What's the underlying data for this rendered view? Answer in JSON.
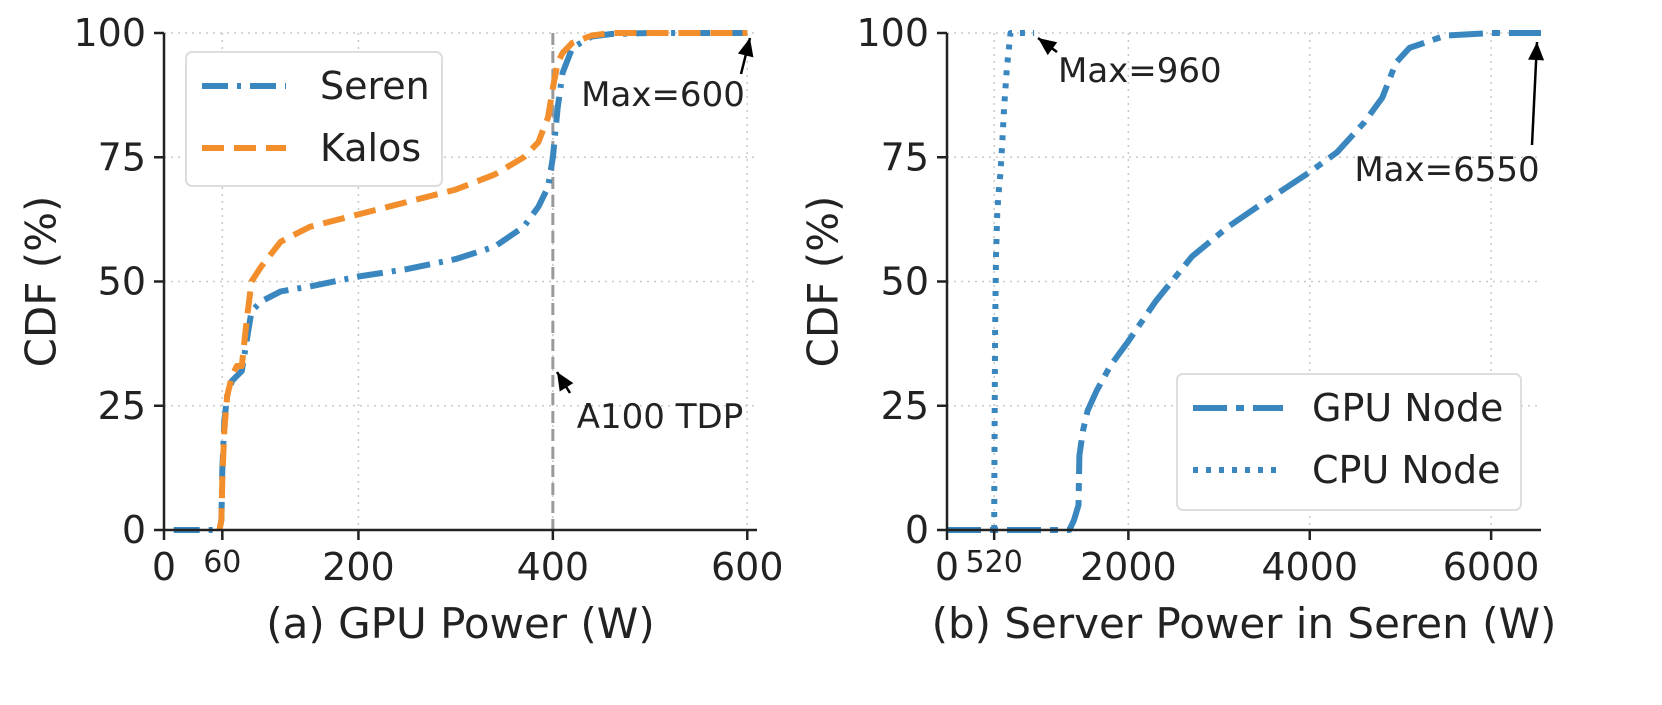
{
  "chart_data": [
    {
      "type": "line",
      "subplot": "(a)",
      "xlabel": "(a) GPU Power (W)",
      "ylabel": "CDF (%)",
      "xlim": [
        0,
        610
      ],
      "ylim": [
        0,
        100
      ],
      "xticks": [
        0,
        60,
        200,
        400,
        600
      ],
      "xtick_labels": [
        "0",
        "60",
        "200",
        "400",
        "600"
      ],
      "yticks": [
        0,
        25,
        50,
        75,
        100
      ],
      "ytick_labels": [
        "0",
        "25",
        "50",
        "75",
        "100"
      ],
      "grid": true,
      "legend_position": "upper-left",
      "vertical_line": {
        "x": 400,
        "label": "A100 TDP",
        "color": "#999999"
      },
      "series": [
        {
          "name": "Seren",
          "color": "#3a87c0",
          "style": "dash-dot",
          "x": [
            10,
            57,
            59,
            60,
            62,
            65,
            70,
            75,
            80,
            85,
            90,
            100,
            120,
            150,
            200,
            250,
            300,
            340,
            370,
            385,
            395,
            400,
            405,
            410,
            420,
            440,
            460,
            500,
            550,
            600
          ],
          "y": [
            0,
            0,
            2,
            12,
            22,
            27,
            30,
            31,
            32,
            38,
            44,
            46,
            48,
            49,
            51,
            52.5,
            54.5,
            57,
            61,
            65,
            69,
            75,
            85,
            92,
            97,
            99.3,
            99.8,
            100,
            100,
            100
          ]
        },
        {
          "name": "Kalos",
          "color": "#f28e2b",
          "style": "dash",
          "x": [
            57,
            59,
            60,
            62,
            65,
            70,
            75,
            80,
            85,
            90,
            100,
            120,
            150,
            200,
            250,
            300,
            340,
            370,
            385,
            395,
            400,
            405,
            410,
            420,
            440,
            460,
            500,
            550,
            600
          ],
          "y": [
            0,
            2,
            10,
            20,
            27,
            31,
            33,
            33,
            42,
            50,
            53,
            58,
            61,
            63.5,
            66,
            68.5,
            71.5,
            75,
            78,
            83,
            89,
            94,
            96,
            98,
            99.5,
            100,
            100,
            100,
            100
          ]
        }
      ],
      "annotations": [
        {
          "text": "Max=600",
          "target": [
            600,
            100
          ]
        },
        {
          "text": "A100 TDP",
          "target": [
            400,
            32
          ]
        }
      ]
    },
    {
      "type": "line",
      "subplot": "(b)",
      "xlabel": "(b) Server Power in Seren (W)",
      "ylabel": "CDF (%)",
      "xlim": [
        0,
        6550
      ],
      "ylim": [
        0,
        100
      ],
      "xticks": [
        0,
        520,
        2000,
        4000,
        6000
      ],
      "xtick_labels": [
        "0",
        "520",
        "2000",
        "4000",
        "6000"
      ],
      "yticks": [
        0,
        25,
        50,
        75,
        100
      ],
      "ytick_labels": [
        "0",
        "25",
        "50",
        "75",
        "100"
      ],
      "grid": true,
      "legend_position": "lower-right",
      "series": [
        {
          "name": "GPU Node",
          "color": "#3a87c0",
          "style": "long-dash",
          "x": [
            0,
            1350,
            1400,
            1450,
            1460,
            1500,
            1550,
            1650,
            1800,
            2000,
            2300,
            2700,
            3100,
            3500,
            4000,
            4300,
            4600,
            4800,
            4950,
            5100,
            5500,
            6000,
            6550
          ],
          "y": [
            0,
            0,
            2,
            5,
            15,
            20,
            24,
            28,
            33,
            38,
            46,
            55,
            61,
            66,
            72,
            76,
            82,
            87,
            94,
            97,
            99.5,
            100,
            100
          ]
        },
        {
          "name": "CPU Node",
          "color": "#3a87c0",
          "style": "dot",
          "x": [
            520,
            522,
            525,
            530,
            540,
            555,
            570,
            590,
            610,
            630,
            660,
            700,
            960
          ],
          "y": [
            0,
            8,
            20,
            40,
            55,
            64,
            68,
            72,
            78,
            85,
            93,
            100,
            100
          ]
        }
      ],
      "annotations": [
        {
          "text": "Max=960",
          "target": [
            960,
            100
          ]
        },
        {
          "text": "Max=6550",
          "target": [
            6550,
            100
          ]
        }
      ]
    }
  ]
}
